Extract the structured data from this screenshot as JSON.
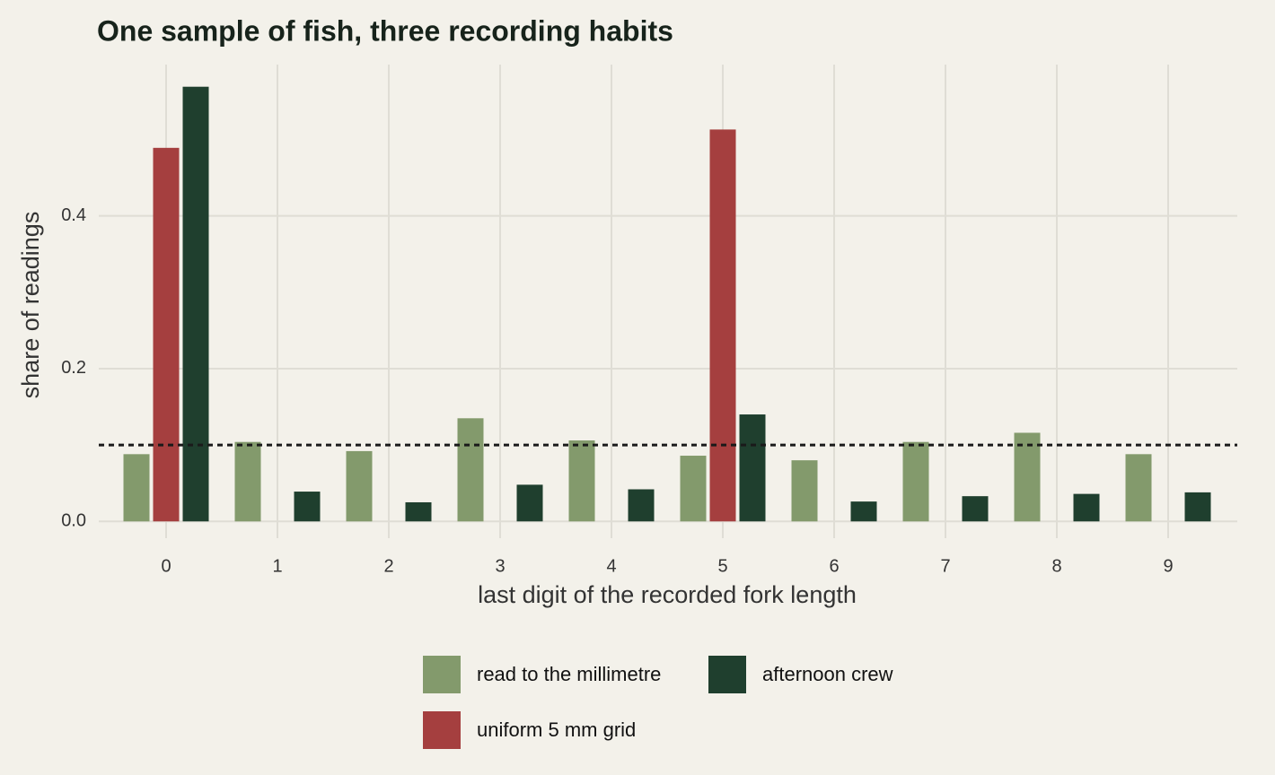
{
  "chart_data": {
    "type": "bar",
    "title": "One sample of fish, three recording habits",
    "x_label": "last digit of the recorded fork length",
    "y_label": "share of readings",
    "categories": [
      "0",
      "1",
      "2",
      "3",
      "4",
      "5",
      "6",
      "7",
      "8",
      "9"
    ],
    "series": [
      {
        "name": "read to the millimetre",
        "color": "#839a6c",
        "values": [
          0.088,
          0.104,
          0.092,
          0.135,
          0.106,
          0.086,
          0.08,
          0.104,
          0.116,
          0.088
        ]
      },
      {
        "name": "uniform 5 mm grid",
        "color": "#a53f3f",
        "values": [
          0.489,
          0,
          0,
          0,
          0,
          0.513,
          0,
          0,
          0,
          0
        ]
      },
      {
        "name": "afternoon crew",
        "color": "#1f3f2e",
        "values": [
          0.569,
          0.039,
          0.025,
          0.048,
          0.042,
          0.14,
          0.026,
          0.033,
          0.036,
          0.038
        ]
      }
    ],
    "reference_line": 0.1,
    "ylim": [
      -0.022,
      0.598
    ],
    "yticks": [
      {
        "value": 0,
        "label": "0.0"
      },
      {
        "value": 0.2,
        "label": "0.2"
      },
      {
        "value": 0.4,
        "label": "0.4"
      }
    ],
    "grid": true,
    "legend_position": "bottom"
  }
}
